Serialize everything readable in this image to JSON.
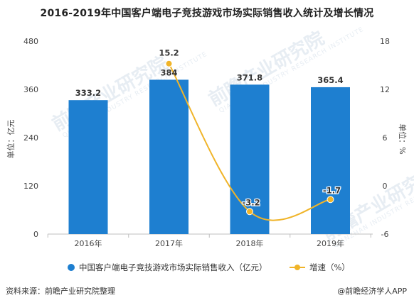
{
  "page": {
    "title": "2016-2019年中国客户端电子竞技游戏市场实际销售收入统计及增长情况",
    "source": "资料来源：前瞻产业研究院整理",
    "credit": "@前瞻经济学人APP",
    "watermark": "前瞻产业研究院",
    "watermark_sub": "QIANZHAN INDUSTRY RESEARCH INSTITUTE"
  },
  "chart_data": {
    "type": "bar",
    "categories": [
      "2016年",
      "2017年",
      "2018年",
      "2019年"
    ],
    "series": [
      {
        "name": "中国客户端电子竞技游戏市场实际销售收入（亿元）",
        "type": "bar",
        "axis": "left",
        "values": [
          333.2,
          384,
          371.8,
          365.4
        ],
        "labels": [
          "333.2",
          "384",
          "371.8",
          "365.4"
        ],
        "color": "#1e7fd0"
      },
      {
        "name": "增速（%）",
        "type": "line",
        "axis": "right",
        "values": [
          null,
          15.2,
          -3.2,
          -1.7
        ],
        "labels": [
          "",
          "15.2",
          "-3.2",
          "-1.7"
        ],
        "color": "#f0b429"
      }
    ],
    "ylabel": "单位：亿元",
    "y2label": "单位：%",
    "ylim": [
      0,
      480
    ],
    "yticks": [
      "0",
      "120",
      "240",
      "360",
      "480"
    ],
    "y2lim": [
      -6,
      18
    ],
    "y2ticks": [
      "-6",
      "0",
      "6",
      "12",
      "18"
    ],
    "grid": false,
    "legend": "bottom"
  }
}
